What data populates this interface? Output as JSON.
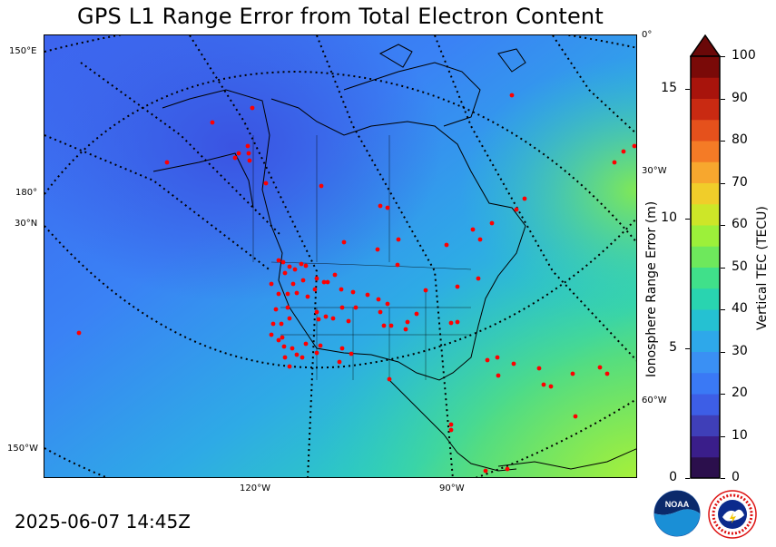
{
  "header": {
    "title": "GPS L1 Range Error from Total Electron Content"
  },
  "map": {
    "edge_labels_left": [
      "150°E",
      "180°",
      "30°N",
      "150°W"
    ],
    "edge_labels_right": [
      "0°",
      "30°W",
      "60°W"
    ],
    "edge_labels_bottom": [
      "120°W",
      "90°W"
    ],
    "station_marker_color": "#ff0000",
    "colormap_note_colors": {
      "low": "#3a6cf0",
      "mid": "#2fd0b0",
      "high": "#9cf03a"
    }
  },
  "colorbar": {
    "left_axis_title": "Ionosphere Range Error (m)",
    "right_axis_title": "Vertical TEC (TECU)",
    "left_ticks": [
      "0",
      "5",
      "10",
      "15"
    ],
    "right_ticks": [
      "0",
      "10",
      "20",
      "30",
      "40",
      "50",
      "60",
      "70",
      "80",
      "90",
      "100"
    ],
    "extend": "max",
    "colors": [
      "#2b0f4c",
      "#3a1e8a",
      "#3f3fb8",
      "#3d5ee6",
      "#3a79f5",
      "#3a90f4",
      "#2ea8ea",
      "#25c1d2",
      "#29d4b0",
      "#40e08a",
      "#6ee85c",
      "#9cf03a",
      "#cde628",
      "#f0cd2a",
      "#f7a72e",
      "#f47b26",
      "#e5511c",
      "#c92a12",
      "#a8140c",
      "#7a0a08"
    ],
    "extend_color": "#6a0808"
  },
  "footer": {
    "timestamp": "2025-06-07 14:45Z"
  },
  "logos": {
    "noaa_text": "NOAA",
    "nws_text": "NATIONAL WEATHER SERVICE"
  }
}
